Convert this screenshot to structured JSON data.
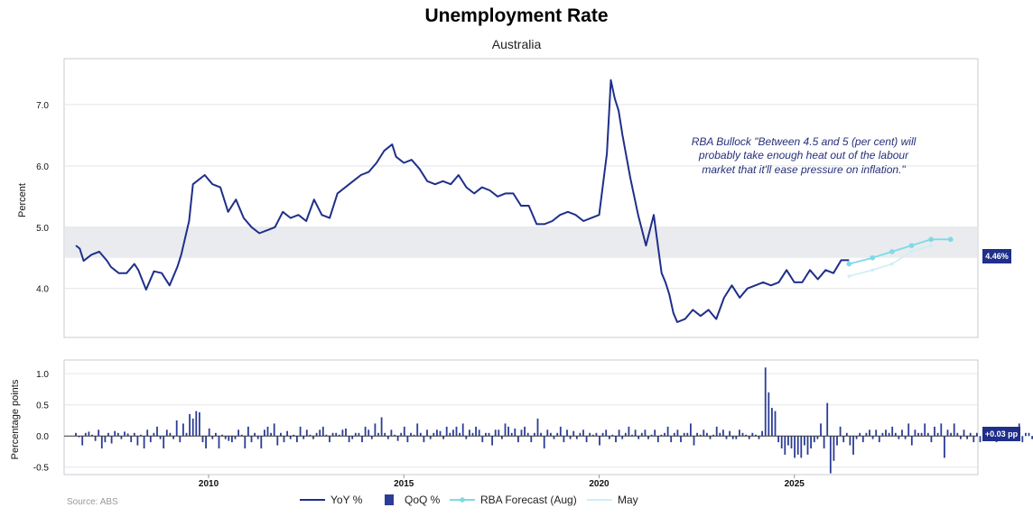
{
  "header": {
    "title": "Unemployment Rate",
    "subtitle": "Australia"
  },
  "source": "Source: ABS",
  "annotation": [
    "RBA Bullock \"Between 4.5 and 5 (per cent) will",
    "probably take enough heat out of the labour",
    "market that it'll ease pressure on inflation.\""
  ],
  "colors": {
    "yoy": "#1f2f8a",
    "qoq": "#2b3d96",
    "forecast": "#7fd9e6",
    "may": "#cdeff4",
    "band": "#e9ebee",
    "badge": "#1f2f8a"
  },
  "badges": {
    "top": "4.46%",
    "bottom": "+0.03 pp"
  },
  "legend": [
    {
      "key": "yoy",
      "label": "YoY %",
      "style": "line"
    },
    {
      "key": "qoq",
      "label": "QoQ %",
      "style": "square"
    },
    {
      "key": "forecast",
      "label": "RBA Forecast (Aug)",
      "style": "line-marker"
    },
    {
      "key": "may",
      "label": "May",
      "style": "line"
    }
  ],
  "chart_data": [
    {
      "type": "line",
      "title": "Unemployment Rate",
      "subtitle": "Australia",
      "ylabel": "Percent",
      "xlim": [
        2006.3,
        2029.7
      ],
      "ylim": [
        3.2,
        7.75
      ],
      "yticks": [
        "4.0",
        "5.0",
        "6.0",
        "7.0"
      ],
      "xticks": [
        "2010",
        "2015",
        "2020",
        "2025"
      ],
      "shaded_band": [
        4.5,
        5.0
      ],
      "grid": true,
      "series": [
        {
          "name": "YoY %",
          "x": [
            2006.6,
            2006.7,
            2006.8,
            2007.0,
            2007.2,
            2007.4,
            2007.5,
            2007.7,
            2007.9,
            2008.1,
            2008.2,
            2008.4,
            2008.6,
            2008.8,
            2009.0,
            2009.2,
            2009.3,
            2009.5,
            2009.6,
            2009.9,
            2010.1,
            2010.3,
            2010.5,
            2010.7,
            2010.9,
            2011.1,
            2011.3,
            2011.5,
            2011.7,
            2011.9,
            2012.1,
            2012.3,
            2012.5,
            2012.7,
            2012.9,
            2013.1,
            2013.3,
            2013.5,
            2013.7,
            2013.9,
            2014.1,
            2014.3,
            2014.5,
            2014.7,
            2014.8,
            2015.0,
            2015.2,
            2015.4,
            2015.6,
            2015.8,
            2016.0,
            2016.2,
            2016.4,
            2016.6,
            2016.8,
            2017.0,
            2017.2,
            2017.4,
            2017.6,
            2017.8,
            2018.0,
            2018.2,
            2018.4,
            2018.6,
            2018.8,
            2019.0,
            2019.2,
            2019.4,
            2019.6,
            2019.8,
            2020.0,
            2020.2,
            2020.3,
            2020.4,
            2020.5,
            2020.6,
            2020.8,
            2021.0,
            2021.2,
            2021.4,
            2021.6,
            2021.7,
            2021.8,
            2021.9,
            2022.0,
            2022.2,
            2022.4,
            2022.6,
            2022.8,
            2023.0,
            2023.2,
            2023.4,
            2023.6,
            2023.8,
            2024.0,
            2024.2,
            2024.4,
            2024.6,
            2024.8,
            2025.0,
            2025.2,
            2025.4,
            2025.6,
            2025.8,
            2026.0,
            2026.2,
            2026.4
          ],
          "values": [
            4.7,
            4.65,
            4.45,
            4.55,
            4.6,
            4.45,
            4.35,
            4.25,
            4.25,
            4.4,
            4.3,
            3.98,
            4.28,
            4.25,
            4.05,
            4.35,
            4.55,
            5.1,
            5.7,
            5.85,
            5.7,
            5.65,
            5.25,
            5.45,
            5.15,
            5.0,
            4.9,
            4.95,
            5.0,
            5.25,
            5.15,
            5.2,
            5.1,
            5.45,
            5.2,
            5.15,
            5.55,
            5.65,
            5.75,
            5.85,
            5.9,
            6.05,
            6.25,
            6.35,
            6.15,
            6.05,
            6.1,
            5.95,
            5.75,
            5.7,
            5.75,
            5.7,
            5.85,
            5.65,
            5.55,
            5.65,
            5.6,
            5.5,
            5.55,
            5.55,
            5.35,
            5.35,
            5.05,
            5.05,
            5.1,
            5.2,
            5.25,
            5.2,
            5.1,
            5.15,
            5.2,
            6.2,
            7.4,
            7.1,
            6.9,
            6.5,
            5.8,
            5.2,
            4.7,
            5.2,
            4.25,
            4.1,
            3.9,
            3.6,
            3.45,
            3.5,
            3.65,
            3.55,
            3.65,
            3.5,
            3.85,
            4.05,
            3.85,
            4.0,
            4.05,
            4.1,
            4.05,
            4.1,
            4.3,
            4.1,
            4.1,
            4.3,
            4.15,
            4.3,
            4.25,
            4.46,
            4.46
          ]
        },
        {
          "name": "RBA Forecast (Aug)",
          "x": [
            2026.4,
            2027.0,
            2027.5,
            2028.0,
            2028.5,
            2029.0
          ],
          "values": [
            4.4,
            4.5,
            4.6,
            4.7,
            4.8,
            4.8
          ]
        },
        {
          "name": "May",
          "x": [
            2026.4,
            2027.0,
            2027.5,
            2028.0,
            2028.5
          ],
          "values": [
            4.2,
            4.3,
            4.4,
            4.6,
            4.7
          ]
        }
      ]
    },
    {
      "type": "bar",
      "ylabel": "Percentage points",
      "ylim": [
        -0.62,
        1.22
      ],
      "yticks": [
        "1.0",
        "0.5",
        "0.0",
        "-0.5"
      ],
      "series": [
        {
          "name": "QoQ %",
          "x_start": 2006.6,
          "x_step": 0.0833,
          "values": [
            0.05,
            -0.02,
            -0.15,
            0.05,
            0.07,
            0.02,
            -0.08,
            0.1,
            -0.2,
            -0.1,
            0.05,
            -0.12,
            0.08,
            0.05,
            -0.05,
            0.07,
            0.04,
            -0.1,
            0.05,
            -0.15,
            0.02,
            -0.2,
            0.1,
            -0.1,
            0.05,
            0.15,
            -0.05,
            -0.2,
            0.1,
            0.05,
            -0.05,
            0.25,
            -0.1,
            0.2,
            0.05,
            0.35,
            0.28,
            0.4,
            0.38,
            -0.1,
            -0.2,
            0.12,
            -0.05,
            0.05,
            -0.2,
            0.02,
            -0.05,
            -0.08,
            -0.1,
            -0.05,
            0.1,
            0.02,
            -0.2,
            0.15,
            -0.1,
            0.05,
            -0.05,
            -0.2,
            0.1,
            0.15,
            0.05,
            0.2,
            -0.15,
            0.05,
            -0.1,
            0.08,
            -0.05,
            0.02,
            -0.1,
            0.15,
            -0.05,
            0.1,
            0.02,
            -0.05,
            0.05,
            0.1,
            0.15,
            0.02,
            -0.1,
            0.05,
            0.05,
            0.02,
            0.1,
            0.12,
            -0.1,
            -0.05,
            0.05,
            0.05,
            -0.1,
            0.15,
            0.1,
            -0.05,
            0.2,
            0.05,
            0.3,
            0.05,
            -0.05,
            0.1,
            0.02,
            -0.08,
            0.05,
            0.15,
            -0.1,
            0.05,
            0.02,
            0.2,
            0.05,
            -0.1,
            0.1,
            -0.05,
            0.05,
            0.1,
            0.08,
            -0.05,
            0.15,
            0.05,
            0.1,
            0.15,
            0.05,
            0.2,
            -0.05,
            0.1,
            0.05,
            0.15,
            0.1,
            -0.1,
            0.05,
            0.05,
            -0.15,
            0.1,
            0.1,
            -0.05,
            0.2,
            0.15,
            0.05,
            0.12,
            -0.1,
            0.1,
            0.15,
            0.05,
            -0.1,
            0.05,
            0.28,
            0.05,
            -0.2,
            0.1,
            0.05,
            -0.05,
            0.05,
            0.15,
            -0.1,
            0.1,
            -0.05,
            0.08,
            -0.05,
            0.05,
            0.1,
            -0.1,
            0.05,
            0.02,
            0.05,
            -0.15,
            0.05,
            0.1,
            -0.05,
            0.02,
            -0.1,
            0.1,
            -0.05,
            0.05,
            0.15,
            0.02,
            0.1,
            -0.05,
            0.05,
            0.1,
            -0.05,
            0.02,
            0.1,
            -0.1,
            0.02,
            0.05,
            0.15,
            -0.1,
            0.05,
            0.1,
            -0.1,
            0.05,
            0.05,
            0.2,
            -0.15,
            0.05,
            0.02,
            0.1,
            0.05,
            -0.05,
            0.02,
            0.15,
            0.05,
            0.1,
            -0.05,
            0.08,
            -0.05,
            -0.05,
            0.1,
            0.05,
            0.02,
            -0.05,
            0.05,
            0.02,
            -0.05,
            0.08,
            1.1,
            0.7,
            0.45,
            0.4,
            -0.1,
            -0.2,
            -0.3,
            -0.15,
            -0.2,
            -0.35,
            -0.3,
            -0.35,
            -0.15,
            -0.3,
            -0.2,
            -0.1,
            -0.05,
            0.2,
            -0.2,
            0.53,
            -0.6,
            -0.4,
            -0.15,
            0.15,
            -0.1,
            0.05,
            -0.15,
            -0.3,
            -0.05,
            0.05,
            -0.1,
            0.05,
            0.1,
            -0.05,
            0.1,
            -0.1,
            0.05,
            0.1,
            0.05,
            0.15,
            0.05,
            -0.05,
            0.1,
            -0.05,
            0.2,
            -0.15,
            0.1,
            0.05,
            0.05,
            0.2,
            0.05,
            -0.1,
            0.15,
            0.05,
            0.2,
            -0.35,
            0.1,
            0.05,
            0.2,
            0.05,
            -0.05,
            0.1,
            -0.05,
            0.05,
            -0.1,
            0.05,
            -0.1,
            0.05,
            0.1,
            0.05,
            -0.05,
            -0.1,
            0.05,
            -0.05,
            0.1,
            0.05,
            -0.05,
            0.05,
            0.2,
            -0.1,
            0.05,
            0.05,
            -0.05,
            0.2,
            0.1,
            -0.1,
            0.2,
            -0.1,
            0.05,
            0.03
          ]
        }
      ]
    }
  ]
}
